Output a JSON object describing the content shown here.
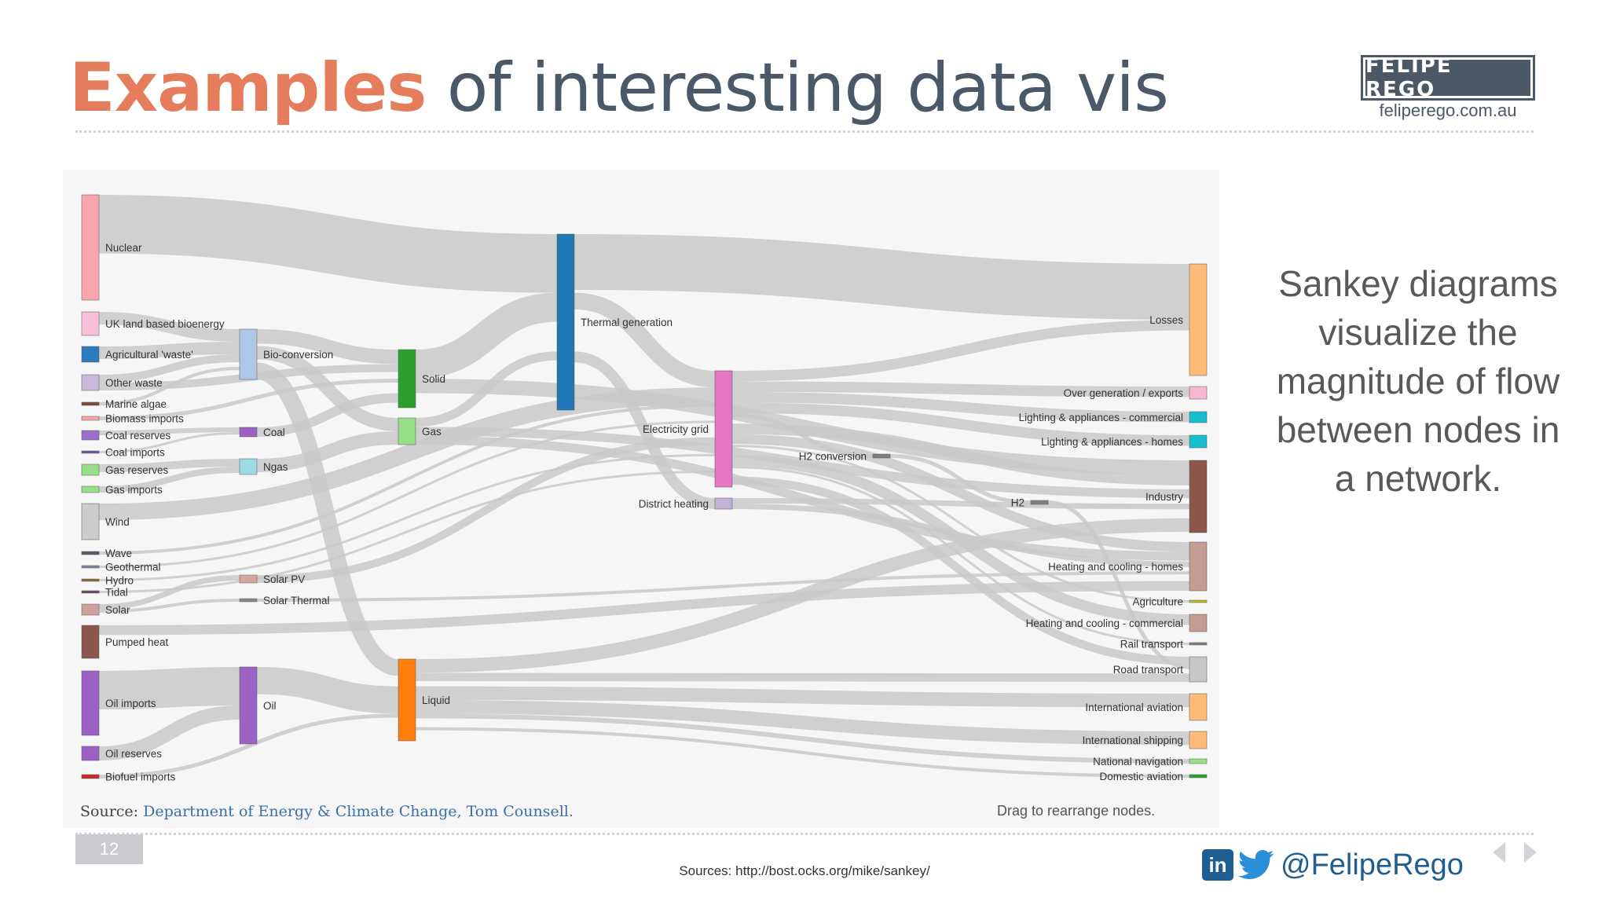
{
  "slide": {
    "title_highlight": "Examples",
    "title_rest": " of interesting data vis",
    "brand_name": "FELIPE REGO",
    "brand_url": "feliperego.com.au",
    "side_text": "Sankey diagrams visualize the magnitude of flow between nodes in a network.",
    "page_number": "12",
    "sources": "Sources: http://bost.ocks.org/mike/sankey/",
    "handle": "@FelipeRego"
  },
  "figure": {
    "source_label": "Source:",
    "source_link": "Department of Energy & Climate Change, Tom Counsell.",
    "drag_hint": "Drag to rearrange nodes.",
    "colors": {
      "link": "#c9c9c9",
      "background": "#f6f6f6"
    }
  },
  "chart_data": {
    "type": "sankey",
    "nodes": [
      {
        "name": "Nuclear",
        "color": "#f6a6ad"
      },
      {
        "name": "UK land based bioenergy",
        "color": "#f7bfd8"
      },
      {
        "name": "Agricultural 'waste'",
        "color": "#2d7bbf"
      },
      {
        "name": "Other waste",
        "color": "#c9b8da"
      },
      {
        "name": "Marine algae",
        "color": "#7a4a3a"
      },
      {
        "name": "Biomass imports",
        "color": "#f4a6a6"
      },
      {
        "name": "Coal reserves",
        "color": "#9a6ec9"
      },
      {
        "name": "Coal imports",
        "color": "#6d57a8"
      },
      {
        "name": "Gas reserves",
        "color": "#98de8a"
      },
      {
        "name": "Gas imports",
        "color": "#98de8a"
      },
      {
        "name": "Wind",
        "color": "#cccccc"
      },
      {
        "name": "Wave",
        "color": "#555f6e"
      },
      {
        "name": "Geothermal",
        "color": "#7b83a6"
      },
      {
        "name": "Hydro",
        "color": "#8c6d31"
      },
      {
        "name": "Tidal",
        "color": "#6b4b6b"
      },
      {
        "name": "Solar",
        "color": "#cfa19e"
      },
      {
        "name": "Pumped heat",
        "color": "#8c564b"
      },
      {
        "name": "Oil imports",
        "color": "#9b62c4"
      },
      {
        "name": "Oil reserves",
        "color": "#9b62c4"
      },
      {
        "name": "Biofuel imports",
        "color": "#c9282a"
      },
      {
        "name": "Bio-conversion",
        "color": "#aec7e8"
      },
      {
        "name": "Coal",
        "color": "#9b62c4"
      },
      {
        "name": "Ngas",
        "color": "#9edae5"
      },
      {
        "name": "Solar PV",
        "color": "#d6a6a0"
      },
      {
        "name": "Solar Thermal",
        "color": "#888888"
      },
      {
        "name": "Oil",
        "color": "#9b62c4"
      },
      {
        "name": "Solid",
        "color": "#2ca02c"
      },
      {
        "name": "Gas",
        "color": "#98df8a"
      },
      {
        "name": "Liquid",
        "color": "#ff7f0e"
      },
      {
        "name": "Thermal generation",
        "color": "#1f77b4"
      },
      {
        "name": "Electricity grid",
        "color": "#e377c2"
      },
      {
        "name": "District heating",
        "color": "#c5b0d5"
      },
      {
        "name": "H2 conversion",
        "color": "#7f7f7f"
      },
      {
        "name": "H2",
        "color": "#7f7f7f"
      },
      {
        "name": "Losses",
        "color": "#ffbb78"
      },
      {
        "name": "Over generation / exports",
        "color": "#f7b6d2"
      },
      {
        "name": "Lighting & appliances - commercial",
        "color": "#17becf"
      },
      {
        "name": "Lighting & appliances - homes",
        "color": "#17becf"
      },
      {
        "name": "Industry",
        "color": "#8c564b"
      },
      {
        "name": "Heating and cooling - homes",
        "color": "#c49c94"
      },
      {
        "name": "Agriculture",
        "color": "#bcbd22"
      },
      {
        "name": "Heating and cooling - commercial",
        "color": "#c49c94"
      },
      {
        "name": "Rail transport",
        "color": "#7f7f7f"
      },
      {
        "name": "Road transport",
        "color": "#c7c7c7"
      },
      {
        "name": "International aviation",
        "color": "#ffbb78"
      },
      {
        "name": "International shipping",
        "color": "#ffbb78"
      },
      {
        "name": "National navigation",
        "color": "#98df8a"
      },
      {
        "name": "Domestic aviation",
        "color": "#2ca02c"
      }
    ],
    "links": [
      {
        "source": "Nuclear",
        "target": "Thermal generation"
      },
      {
        "source": "UK land based bioenergy",
        "target": "Bio-conversion"
      },
      {
        "source": "Agricultural 'waste'",
        "target": "Bio-conversion"
      },
      {
        "source": "Other waste",
        "target": "Bio-conversion"
      },
      {
        "source": "Other waste",
        "target": "Solid"
      },
      {
        "source": "Marine algae",
        "target": "Bio-conversion"
      },
      {
        "source": "Biomass imports",
        "target": "Solid"
      },
      {
        "source": "Coal reserves",
        "target": "Coal"
      },
      {
        "source": "Coal imports",
        "target": "Coal"
      },
      {
        "source": "Gas reserves",
        "target": "Ngas"
      },
      {
        "source": "Gas imports",
        "target": "Ngas"
      },
      {
        "source": "Wind",
        "target": "Electricity grid"
      },
      {
        "source": "Wave",
        "target": "Electricity grid"
      },
      {
        "source": "Geothermal",
        "target": "Electricity grid"
      },
      {
        "source": "Hydro",
        "target": "Electricity grid"
      },
      {
        "source": "Tidal",
        "target": "Electricity grid"
      },
      {
        "source": "Solar",
        "target": "Solar PV"
      },
      {
        "source": "Solar",
        "target": "Solar Thermal"
      },
      {
        "source": "Pumped heat",
        "target": "Heating and cooling - homes"
      },
      {
        "source": "Oil imports",
        "target": "Oil"
      },
      {
        "source": "Oil reserves",
        "target": "Oil"
      },
      {
        "source": "Biofuel imports",
        "target": "Liquid"
      },
      {
        "source": "Bio-conversion",
        "target": "Solid"
      },
      {
        "source": "Bio-conversion",
        "target": "Gas"
      },
      {
        "source": "Bio-conversion",
        "target": "Liquid"
      },
      {
        "source": "Coal",
        "target": "Solid"
      },
      {
        "source": "Ngas",
        "target": "Gas"
      },
      {
        "source": "Solar PV",
        "target": "Electricity grid"
      },
      {
        "source": "Solar Thermal",
        "target": "Heating and cooling - homes"
      },
      {
        "source": "Oil",
        "target": "Liquid"
      },
      {
        "source": "Solid",
        "target": "Thermal generation"
      },
      {
        "source": "Solid",
        "target": "Industry"
      },
      {
        "source": "Gas",
        "target": "Thermal generation"
      },
      {
        "source": "Gas",
        "target": "Heating and cooling - homes"
      },
      {
        "source": "Gas",
        "target": "Industry"
      },
      {
        "source": "Liquid",
        "target": "Road transport"
      },
      {
        "source": "Liquid",
        "target": "International aviation"
      },
      {
        "source": "Liquid",
        "target": "International shipping"
      },
      {
        "source": "Liquid",
        "target": "National navigation"
      },
      {
        "source": "Liquid",
        "target": "Domestic aviation"
      },
      {
        "source": "Liquid",
        "target": "Industry"
      },
      {
        "source": "Thermal generation",
        "target": "Losses"
      },
      {
        "source": "Thermal generation",
        "target": "Electricity grid"
      },
      {
        "source": "Thermal generation",
        "target": "District heating"
      },
      {
        "source": "Electricity grid",
        "target": "Over generation / exports"
      },
      {
        "source": "Electricity grid",
        "target": "Lighting & appliances - commercial"
      },
      {
        "source": "Electricity grid",
        "target": "Lighting & appliances - homes"
      },
      {
        "source": "Electricity grid",
        "target": "Industry"
      },
      {
        "source": "Electricity grid",
        "target": "Heating and cooling - homes"
      },
      {
        "source": "Electricity grid",
        "target": "Heating and cooling - commercial"
      },
      {
        "source": "Electricity grid",
        "target": "Rail transport"
      },
      {
        "source": "Electricity grid",
        "target": "Road transport"
      },
      {
        "source": "Electricity grid",
        "target": "H2 conversion"
      },
      {
        "source": "Electricity grid",
        "target": "Agriculture"
      },
      {
        "source": "Electricity grid",
        "target": "Losses"
      },
      {
        "source": "District heating",
        "target": "Heating and cooling - homes"
      },
      {
        "source": "District heating",
        "target": "Industry"
      },
      {
        "source": "H2 conversion",
        "target": "H2"
      },
      {
        "source": "H2",
        "target": "Road transport"
      }
    ]
  }
}
